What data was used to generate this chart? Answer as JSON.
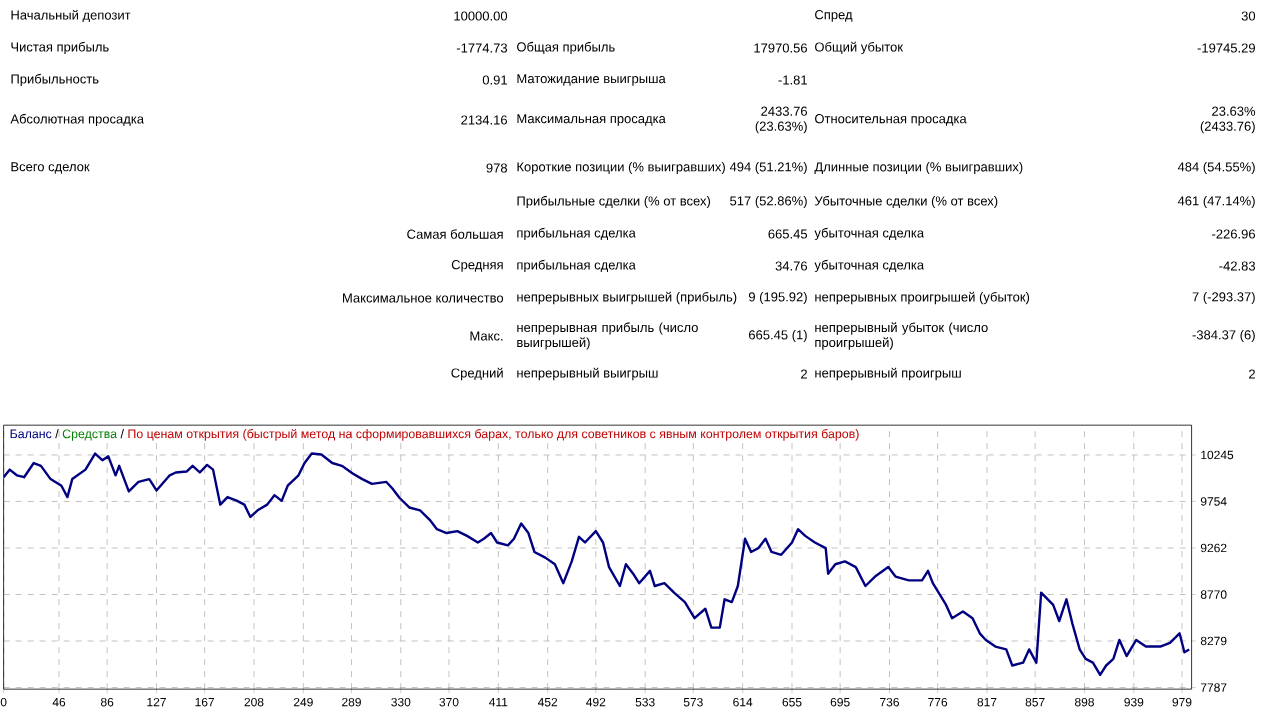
{
  "chart_data": [
    {
      "type": "other",
      "annotations": [
        "Начальный депозит",
        "10000.00",
        "Спред",
        "30",
        "Чистая прибыль",
        "-1774.73",
        "Общая прибыль",
        "17970.56",
        "Общий убыток",
        "-19745.29",
        "Прибыльность",
        "0.91",
        "Матожидание выигрыша",
        "-1.81",
        "Абсолютная просадка",
        "2134.16",
        "Максимальная просадка",
        "2433.76 (23.63%)",
        "Относительная просадка",
        "23.63% (2433.76)",
        "Всего сделок",
        "978",
        "Короткие позиции (% выигравших)",
        "494 (51.21%)",
        "Длинные позиции (% выигравших)",
        "484 (54.55%)",
        "Прибыльные сделки (% от всех)",
        "517 (52.86%)",
        "Убыточные сделки (% от всех)",
        "461 (47.14%)",
        "Самая большая",
        "прибыльная сделка",
        "665.45",
        "убыточная сделка",
        "-226.96",
        "Средняя",
        "прибыльная сделка",
        "34.76",
        "убыточная сделка",
        "-42.83",
        "Максимальное количество",
        "непрерывных выигрышей (прибыль)",
        "9 (195.92)",
        "непрерывных проигрышей (убыток)",
        "7 (-293.37)",
        "Макс.",
        "непрерывная прибыль (число выигрышей)",
        "665.45 (1)",
        "непрерывный убыток (число проигрышей)",
        "-384.37 (6)",
        "Средний",
        "непрерывный выигрыш",
        "2",
        "непрерывный проигрыш",
        "2"
      ]
    },
    {
      "type": "line",
      "subtitle": "По ценам открытия (быстрый метод на сформировавшихся барах, только для советников с явным контролем открытия баров)",
      "x": [
        0,
        5,
        11,
        17,
        25,
        31,
        39,
        48,
        53,
        57,
        68,
        76,
        82,
        87,
        93,
        96,
        104,
        112,
        121,
        127,
        138,
        143,
        152,
        157,
        163,
        169,
        174,
        180,
        186,
        194,
        200,
        205,
        211,
        219,
        225,
        231,
        236,
        245,
        250,
        256,
        264,
        273,
        281,
        290,
        298,
        306,
        318,
        323,
        329,
        337,
        346,
        354,
        360,
        368,
        377,
        385,
        394,
        399,
        405,
        410,
        419,
        424,
        430,
        436,
        441,
        450,
        458,
        465,
        472,
        478,
        483,
        492,
        498,
        503,
        512,
        517,
        523,
        528,
        537,
        541,
        549,
        557,
        566,
        574,
        583,
        588,
        595,
        599,
        605,
        610,
        616,
        621,
        627,
        633,
        638,
        646,
        655,
        660,
        666,
        674,
        683,
        685,
        691,
        699,
        708,
        716,
        724,
        735,
        741,
        752,
        763,
        768,
        772,
        783,
        788,
        797,
        805,
        811,
        816,
        824,
        833,
        838,
        847,
        852,
        858,
        862,
        872,
        877,
        883,
        888,
        894,
        899,
        905,
        911,
        916,
        922,
        927,
        933,
        941,
        949,
        961,
        969,
        977,
        981,
        985
      ],
      "series": [
        {
          "name": "Баланс",
          "color": "#000080",
          "values": [
            10010,
            10090,
            10030,
            10010,
            10160,
            10130,
            9990,
            9920,
            9800,
            9990,
            10090,
            10260,
            10190,
            10230,
            10030,
            10130,
            9860,
            9960,
            9990,
            9870,
            10030,
            10060,
            10070,
            10130,
            10060,
            10140,
            10090,
            9720,
            9800,
            9760,
            9720,
            9590,
            9660,
            9720,
            9820,
            9760,
            9920,
            10030,
            10160,
            10260,
            10250,
            10160,
            10130,
            10050,
            9990,
            9940,
            9960,
            9890,
            9790,
            9690,
            9660,
            9560,
            9460,
            9420,
            9440,
            9390,
            9320,
            9360,
            9420,
            9320,
            9290,
            9360,
            9520,
            9420,
            9220,
            9160,
            9090,
            8890,
            9120,
            9380,
            9320,
            9440,
            9320,
            9060,
            8860,
            9090,
            8990,
            8890,
            9020,
            8860,
            8890,
            8790,
            8690,
            8520,
            8620,
            8420,
            8420,
            8720,
            8690,
            8860,
            9360,
            9220,
            9260,
            9360,
            9220,
            9190,
            9320,
            9460,
            9390,
            9320,
            9260,
            8990,
            9090,
            9120,
            9060,
            8860,
            8960,
            9060,
            8960,
            8920,
            8920,
            9020,
            8890,
            8660,
            8520,
            8590,
            8520,
            8360,
            8290,
            8220,
            8190,
            8020,
            8050,
            8190,
            8050,
            8790,
            8660,
            8490,
            8720,
            8460,
            8190,
            8090,
            8050,
            7920,
            8020,
            8090,
            8290,
            8120,
            8290,
            8220,
            8220,
            8260,
            8360,
            8160,
            8190
          ]
        },
        {
          "name": "Средства",
          "color": "#008000",
          "values": [
            null,
            null,
            null,
            null,
            null,
            null,
            null,
            null,
            null,
            null,
            null,
            null,
            null,
            null,
            null,
            null,
            null,
            null,
            null,
            null,
            null,
            null,
            null,
            null,
            null,
            null,
            null,
            null,
            null,
            null,
            null,
            null,
            null,
            null,
            null,
            null,
            null,
            null,
            null,
            null,
            null,
            null,
            null,
            null,
            null,
            null,
            null,
            null,
            null,
            null,
            null,
            null,
            null,
            null,
            null,
            null,
            null,
            null,
            null,
            null,
            null,
            null,
            null,
            null,
            null,
            null,
            null,
            null,
            null,
            null,
            null,
            null,
            null,
            null,
            null,
            null,
            null,
            null,
            null,
            null,
            null,
            null,
            null,
            null,
            null,
            null,
            null,
            null,
            null,
            null,
            null,
            null,
            null,
            null,
            null,
            null,
            null,
            null,
            null,
            null,
            null,
            null,
            null,
            null,
            null,
            null,
            null,
            null,
            null,
            null,
            null,
            null,
            null,
            null,
            null,
            null,
            null,
            null,
            null,
            null,
            null,
            null,
            null,
            null,
            null,
            null,
            null,
            null,
            null,
            null,
            null,
            null,
            null,
            null,
            null,
            null,
            null,
            null,
            null,
            null,
            null,
            null,
            null,
            null,
            null
          ]
        }
      ],
      "xlim": [
        0,
        987
      ],
      "ylim": [
        7770,
        10560
      ],
      "xticks": [
        0,
        46,
        86,
        127,
        167,
        208,
        249,
        289,
        330,
        370,
        411,
        452,
        492,
        533,
        573,
        614,
        655,
        695,
        736,
        776,
        817,
        857,
        898,
        939,
        979
      ],
      "yticks": [
        7787,
        8279,
        8770,
        9262,
        9754,
        10245
      ],
      "grid": true,
      "legend": "top left",
      "annotations": [
        "/",
        "/"
      ]
    }
  ]
}
